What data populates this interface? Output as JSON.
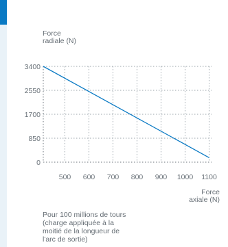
{
  "chart_data": {
    "type": "line",
    "ylabel": "Force\nradiale (N)",
    "xlabel": "Force\naxiale (N)",
    "note": "Pour 100 millions de tours\n(charge appliquée à la\nmoitié de la longueur de\nl'arc de sortie)",
    "x_ticks": [
      500,
      600,
      700,
      800,
      900,
      1000,
      1100
    ],
    "y_ticks": [
      0,
      850,
      1700,
      2550,
      3400
    ],
    "xlim": [
      410,
      1110
    ],
    "ylim": [
      0,
      3400
    ],
    "grid": true,
    "series": [
      {
        "x": [
          410,
          1100
        ],
        "y": [
          3400,
          160
        ]
      }
    ],
    "colors": {
      "line": "#0a7ac4",
      "grid": "#9aa3aa",
      "axis": "#6a7279",
      "accent": "#0a7ac4"
    }
  }
}
